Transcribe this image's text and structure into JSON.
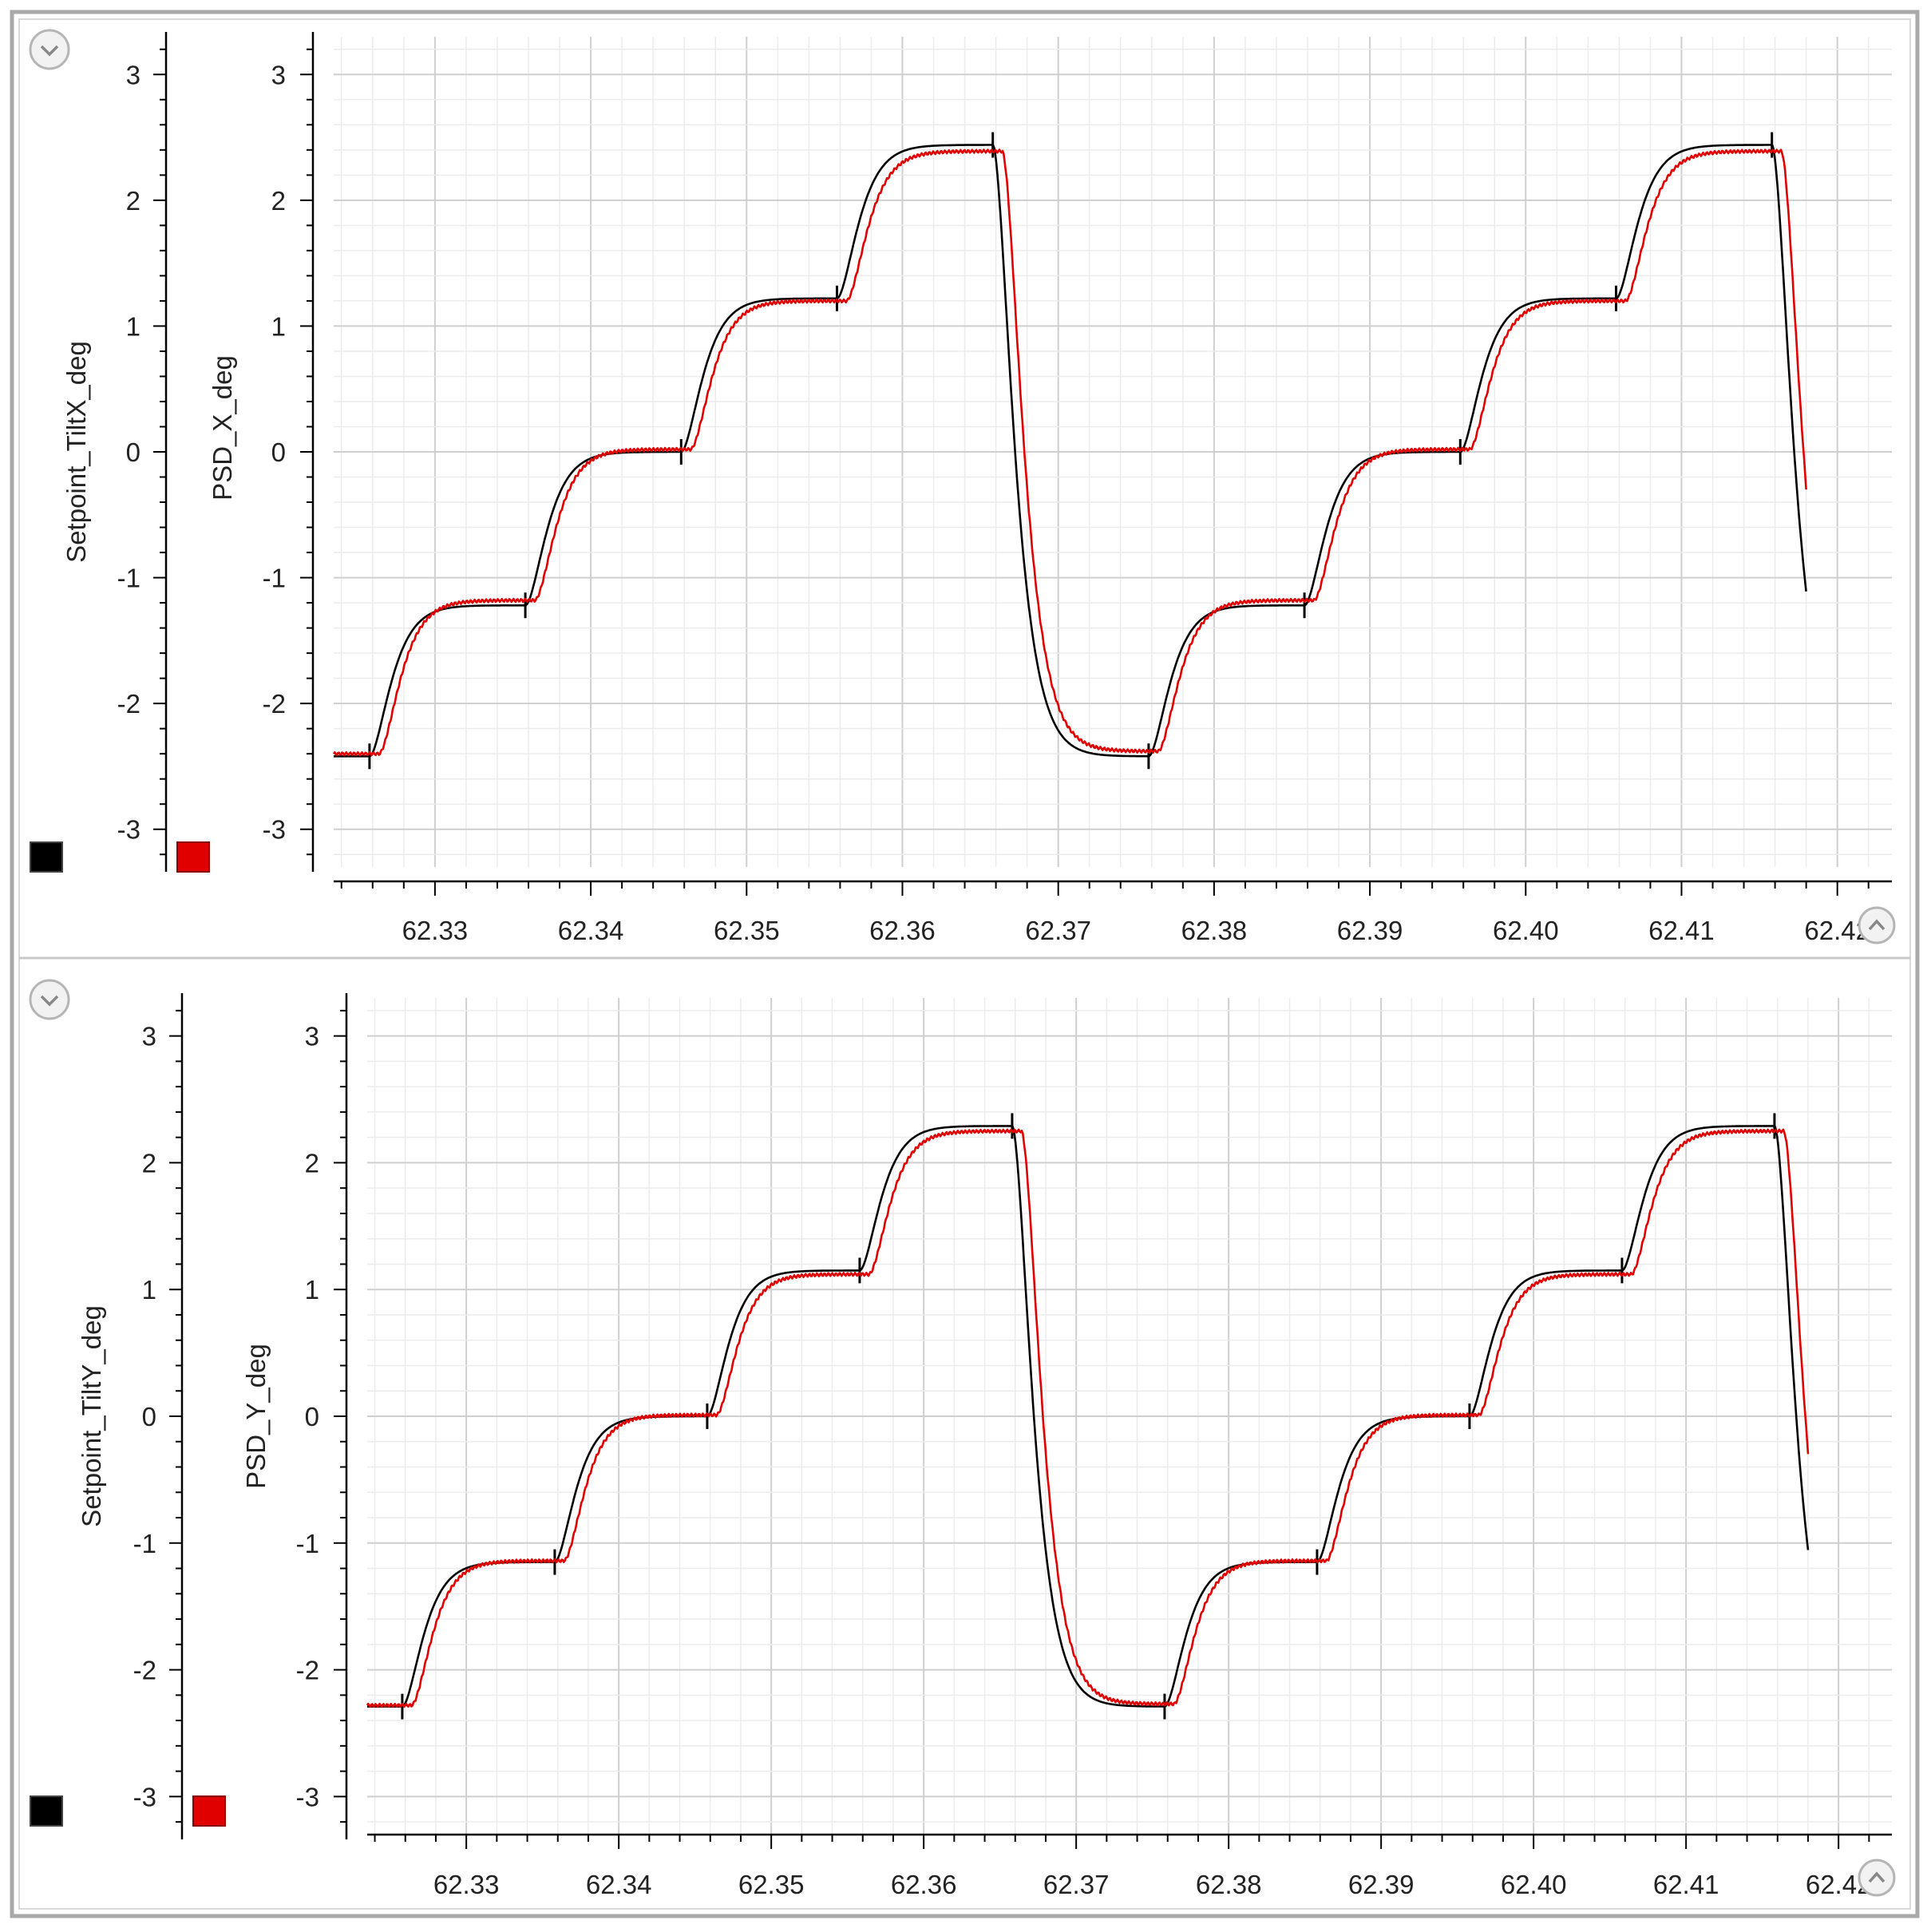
{
  "panels": [
    {
      "collapse_icon": "chevron-down-circle-icon",
      "expand_icon": "chevron-up-circle-icon",
      "legend": [
        {
          "name": "Setpoint_TiltX_deg",
          "color": "#000000"
        },
        {
          "name": "PSD_X_deg",
          "color": "#e00000"
        }
      ]
    },
    {
      "collapse_icon": "chevron-down-circle-icon",
      "expand_icon": "chevron-up-circle-icon",
      "legend": [
        {
          "name": "Setpoint_TiltY_deg",
          "color": "#000000"
        },
        {
          "name": "PSD_Y_deg",
          "color": "#e00000"
        }
      ]
    }
  ],
  "chart_data": [
    {
      "type": "line",
      "xlim": [
        62.3235,
        62.4235
      ],
      "ylim": [
        -3.3,
        3.3
      ],
      "x_ticks": [
        "62.33",
        "62.34",
        "62.35",
        "62.36",
        "62.37",
        "62.38",
        "62.39",
        "62.40",
        "62.41",
        "62.42"
      ],
      "y_ticks": [
        "3",
        "2",
        "1",
        "0",
        "-1",
        "-2",
        "-3"
      ],
      "grid": true,
      "y_axes": [
        {
          "label": "Setpoint_TiltX_deg",
          "color": "#000000"
        },
        {
          "label": "PSD_X_deg",
          "color": "#e00000"
        }
      ],
      "series": [
        {
          "name": "Setpoint_TiltX_deg",
          "color": "#000000",
          "x_start": 62.3235,
          "x_end": 62.418,
          "lag": 0,
          "steps": [
            [
              62.3235,
              -2.42
            ],
            [
              62.3258,
              -1.22
            ],
            [
              62.3358,
              0.0
            ],
            [
              62.3458,
              1.22
            ],
            [
              62.3558,
              2.44
            ],
            [
              62.3658,
              -2.42
            ],
            [
              62.3758,
              -1.22
            ],
            [
              62.3858,
              0.0
            ],
            [
              62.3958,
              1.22
            ],
            [
              62.4058,
              2.44
            ],
            [
              62.4158,
              -2.42
            ]
          ],
          "glitches": [
            62.3258,
            62.3358,
            62.3458,
            62.3558,
            62.3658,
            62.3758,
            62.3858,
            62.3958,
            62.4058,
            62.4158
          ]
        },
        {
          "name": "PSD_X_deg",
          "color": "#e00000",
          "x_start": 62.3235,
          "x_end": 62.418,
          "lag": 0.0006,
          "steps": [
            [
              62.3235,
              -2.4
            ],
            [
              62.3258,
              -1.18
            ],
            [
              62.3358,
              0.02
            ],
            [
              62.3458,
              1.2
            ],
            [
              62.3558,
              2.39
            ],
            [
              62.3658,
              -2.38
            ],
            [
              62.3758,
              -1.18
            ],
            [
              62.3858,
              0.02
            ],
            [
              62.3958,
              1.2
            ],
            [
              62.4058,
              2.39
            ],
            [
              62.4158,
              -2.38
            ]
          ]
        }
      ]
    },
    {
      "type": "line",
      "xlim": [
        62.3235,
        62.4235
      ],
      "ylim": [
        -3.3,
        3.3
      ],
      "x_ticks": [
        "62.33",
        "62.34",
        "62.35",
        "62.36",
        "62.37",
        "62.38",
        "62.39",
        "62.40",
        "62.41",
        "62.42"
      ],
      "y_ticks": [
        "3",
        "2",
        "1",
        "0",
        "-1",
        "-2",
        "-3"
      ],
      "grid": true,
      "y_axes": [
        {
          "label": "Setpoint_TiltY_deg",
          "color": "#000000"
        },
        {
          "label": "PSD_Y_deg",
          "color": "#e00000"
        }
      ],
      "series": [
        {
          "name": "Setpoint_TiltY_deg",
          "color": "#000000",
          "x_start": 62.3235,
          "x_end": 62.418,
          "lag": 0,
          "steps": [
            [
              62.3235,
              -2.29
            ],
            [
              62.3258,
              -1.15
            ],
            [
              62.3358,
              0.0
            ],
            [
              62.3458,
              1.15
            ],
            [
              62.3558,
              2.29
            ],
            [
              62.3658,
              -2.29
            ],
            [
              62.3758,
              -1.15
            ],
            [
              62.3858,
              0.0
            ],
            [
              62.3958,
              1.15
            ],
            [
              62.4058,
              2.29
            ],
            [
              62.4158,
              -2.29
            ]
          ],
          "glitches": [
            62.3258,
            62.3358,
            62.3458,
            62.3558,
            62.3658,
            62.3758,
            62.3858,
            62.3958,
            62.4058,
            62.4158
          ]
        },
        {
          "name": "PSD_Y_deg",
          "color": "#e00000",
          "x_start": 62.3235,
          "x_end": 62.418,
          "lag": 0.0006,
          "steps": [
            [
              62.3235,
              -2.28
            ],
            [
              62.3258,
              -1.14
            ],
            [
              62.3358,
              0.01
            ],
            [
              62.3458,
              1.12
            ],
            [
              62.3558,
              2.25
            ],
            [
              62.3658,
              -2.27
            ],
            [
              62.3758,
              -1.14
            ],
            [
              62.3858,
              0.01
            ],
            [
              62.3958,
              1.12
            ],
            [
              62.4058,
              2.25
            ],
            [
              62.4158,
              -2.27
            ]
          ]
        }
      ]
    }
  ]
}
